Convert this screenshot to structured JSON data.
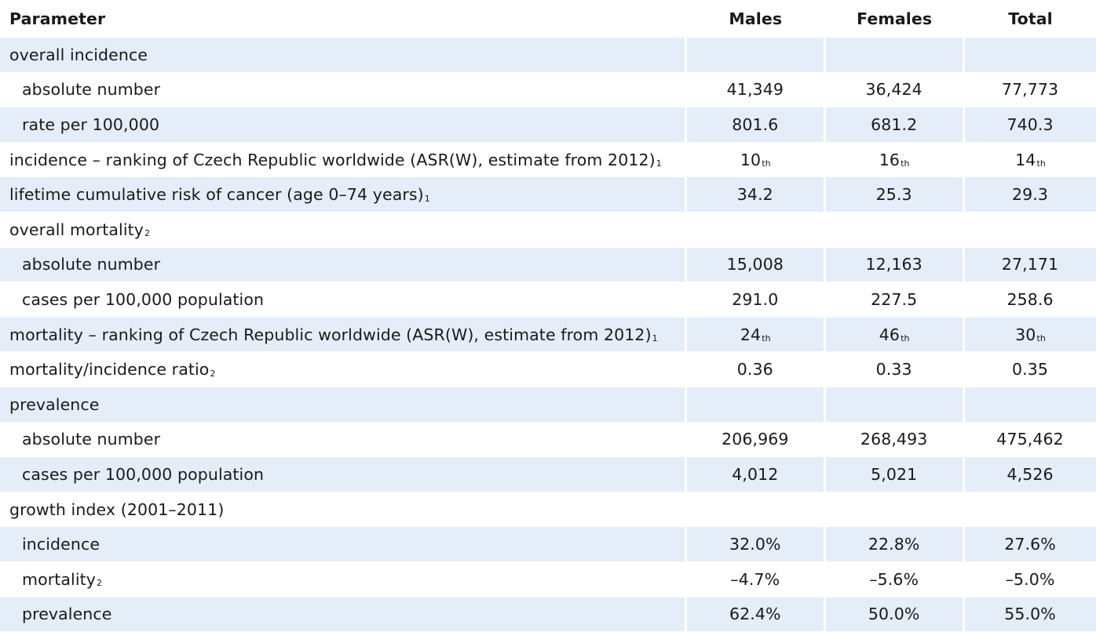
{
  "header": {
    "parameter": "Parameter",
    "males": "Males",
    "females": "Females",
    "total": "Total"
  },
  "rows": [
    {
      "label": "overall incidence",
      "sup": "",
      "indent": false,
      "shaded": true,
      "males": "",
      "males_sup": "",
      "females": "",
      "females_sup": "",
      "total": "",
      "total_sup": ""
    },
    {
      "label": "absolute number",
      "sup": "",
      "indent": true,
      "shaded": false,
      "males": "41,349",
      "males_sup": "",
      "females": "36,424",
      "females_sup": "",
      "total": "77,773",
      "total_sup": ""
    },
    {
      "label": "rate per 100,000",
      "sup": "",
      "indent": true,
      "shaded": true,
      "males": "801.6",
      "males_sup": "",
      "females": "681.2",
      "females_sup": "",
      "total": "740.3",
      "total_sup": ""
    },
    {
      "label": "incidence – ranking of Czech Republic worldwide (ASR(W), estimate from 2012)",
      "sup": "1",
      "indent": false,
      "shaded": false,
      "males": "10",
      "males_sup": "th",
      "females": "16",
      "females_sup": "th",
      "total": "14",
      "total_sup": "th"
    },
    {
      "label": "lifetime cumulative risk of cancer (age 0–74 years)",
      "sup": "1",
      "indent": false,
      "shaded": true,
      "males": "34.2",
      "males_sup": "",
      "females": "25.3",
      "females_sup": "",
      "total": "29.3",
      "total_sup": ""
    },
    {
      "label": "overall mortality",
      "sup": "2",
      "indent": false,
      "shaded": false,
      "males": "",
      "males_sup": "",
      "females": "",
      "females_sup": "",
      "total": "",
      "total_sup": ""
    },
    {
      "label": "absolute number",
      "sup": "",
      "indent": true,
      "shaded": true,
      "males": "15,008",
      "males_sup": "",
      "females": "12,163",
      "females_sup": "",
      "total": "27,171",
      "total_sup": ""
    },
    {
      "label": "cases per 100,000 population",
      "sup": "",
      "indent": true,
      "shaded": false,
      "males": "291.0",
      "males_sup": "",
      "females": "227.5",
      "females_sup": "",
      "total": "258.6",
      "total_sup": ""
    },
    {
      "label": "mortality – ranking of Czech Republic worldwide (ASR(W), estimate from 2012)",
      "sup": "1",
      "indent": false,
      "shaded": true,
      "males": "24",
      "males_sup": "th",
      "females": "46",
      "females_sup": "th",
      "total": "30",
      "total_sup": "th"
    },
    {
      "label": "mortality/incidence ratio",
      "sup": "2",
      "indent": false,
      "shaded": false,
      "males": "0.36",
      "males_sup": "",
      "females": "0.33",
      "females_sup": "",
      "total": "0.35",
      "total_sup": ""
    },
    {
      "label": "prevalence",
      "sup": "",
      "indent": false,
      "shaded": true,
      "males": "",
      "males_sup": "",
      "females": "",
      "females_sup": "",
      "total": "",
      "total_sup": ""
    },
    {
      "label": "absolute number",
      "sup": "",
      "indent": true,
      "shaded": false,
      "males": "206,969",
      "males_sup": "",
      "females": "268,493",
      "females_sup": "",
      "total": "475,462",
      "total_sup": ""
    },
    {
      "label": "cases per 100,000 population",
      "sup": "",
      "indent": true,
      "shaded": true,
      "males": "4,012",
      "males_sup": "",
      "females": "5,021",
      "females_sup": "",
      "total": "4,526",
      "total_sup": ""
    },
    {
      "label": "growth index (2001–2011)",
      "sup": "",
      "indent": false,
      "shaded": false,
      "males": "",
      "males_sup": "",
      "females": "",
      "females_sup": "",
      "total": "",
      "total_sup": ""
    },
    {
      "label": "incidence",
      "sup": "",
      "indent": true,
      "shaded": true,
      "males": "32.0%",
      "males_sup": "",
      "females": "22.8%",
      "females_sup": "",
      "total": "27.6%",
      "total_sup": ""
    },
    {
      "label": "mortality",
      "sup": "2",
      "indent": true,
      "shaded": false,
      "males": "–4.7%",
      "males_sup": "",
      "females": "–5.6%",
      "females_sup": "",
      "total": "–5.0%",
      "total_sup": ""
    },
    {
      "label": "prevalence",
      "sup": "",
      "indent": true,
      "shaded": true,
      "males": "62.4%",
      "males_sup": "",
      "females": "50.0%",
      "females_sup": "",
      "total": "55.0%",
      "total_sup": ""
    }
  ],
  "colors": {
    "shade": "#e4edf8",
    "text": "#1a1a1a"
  }
}
